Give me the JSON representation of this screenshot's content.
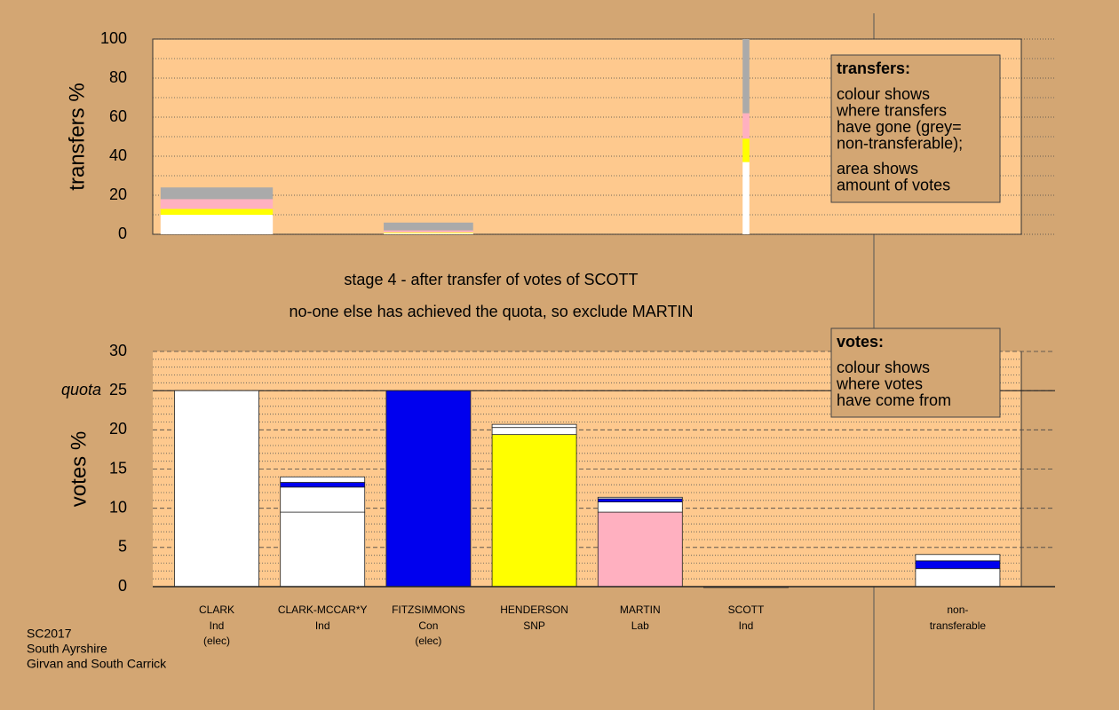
{
  "chart_data": [
    {
      "type": "stacked_bar",
      "y_label": "transfers %",
      "ylim": [
        0,
        100
      ],
      "yticks": [
        0,
        20,
        40,
        60,
        80,
        100
      ],
      "grid": true,
      "bar_widths": [
        1.33,
        null,
        1.06,
        null,
        null,
        0.08,
        null
      ],
      "series": [
        {
          "color": "#ffffff",
          "values": [
            10,
            null,
            1,
            null,
            null,
            37,
            null
          ]
        },
        {
          "color": "#ffff00",
          "values": [
            3,
            null,
            0,
            null,
            null,
            12,
            null
          ]
        },
        {
          "color": "#ffb0c0",
          "values": [
            5,
            null,
            1,
            null,
            null,
            13,
            null
          ]
        },
        {
          "color": "#aaaaaa",
          "values": [
            6,
            null,
            4,
            null,
            null,
            38,
            null
          ]
        }
      ],
      "note_title": "transfers:",
      "note_lines": [
        "colour shows",
        "where transfers",
        "have gone (grey=",
        "non-transferable);",
        "area shows",
        "amount of votes"
      ]
    },
    {
      "type": "stacked_bar",
      "y_label": "votes %",
      "ylim": [
        0,
        30
      ],
      "yticks": [
        0,
        5,
        10,
        15,
        20,
        25,
        30
      ],
      "grid": true,
      "quota": {
        "value": 25,
        "label": "quota"
      },
      "categories": [
        "CLARK",
        "CLARK-MCCAR*Y",
        "FITZSIMMONS",
        "HENDERSON",
        "MARTIN",
        "SCOTT",
        "non-"
      ],
      "parties": [
        "Ind",
        "Ind",
        "Con",
        "SNP",
        "Lab",
        "Ind",
        "transferable"
      ],
      "notes": [
        "(elec)",
        null,
        "(elec)",
        null,
        null,
        null,
        null
      ],
      "series": [
        {
          "values": [
            25,
            9.5,
            25,
            19.4,
            9.5,
            0,
            2.3
          ],
          "colors": [
            "#ffffff",
            "#ffffff",
            "#0000ee",
            "#ffff00",
            "#ffb0c0",
            "#ffffff",
            "#ffffff"
          ]
        },
        {
          "values": [
            null,
            3.2,
            null,
            0.9,
            1.3,
            null,
            1.0
          ],
          "colors": [
            null,
            "#ffffff",
            null,
            "#ffffff",
            "#ffffff",
            null,
            "#0000ee"
          ]
        },
        {
          "values": [
            null,
            0.6,
            null,
            0.4,
            0.4,
            null,
            0.8
          ],
          "colors": [
            null,
            "#0000ee",
            null,
            "#ffffff",
            "#0000ee",
            null,
            "#ffffff"
          ]
        },
        {
          "values": [
            null,
            0.7,
            null,
            null,
            0.2,
            null,
            null
          ],
          "colors": [
            null,
            "#ffffff",
            null,
            null,
            "#ffffff",
            null,
            null
          ]
        }
      ],
      "note_title": "votes:",
      "note_lines": [
        "colour shows",
        "where votes",
        "have come from"
      ]
    }
  ],
  "stage": [
    "stage 4 - after transfer of votes of SCOTT",
    "no-one else has achieved the quota, so exclude MARTIN"
  ],
  "footer": [
    "SC2017",
    "South Ayrshire",
    "Girvan and South Carrick"
  ]
}
